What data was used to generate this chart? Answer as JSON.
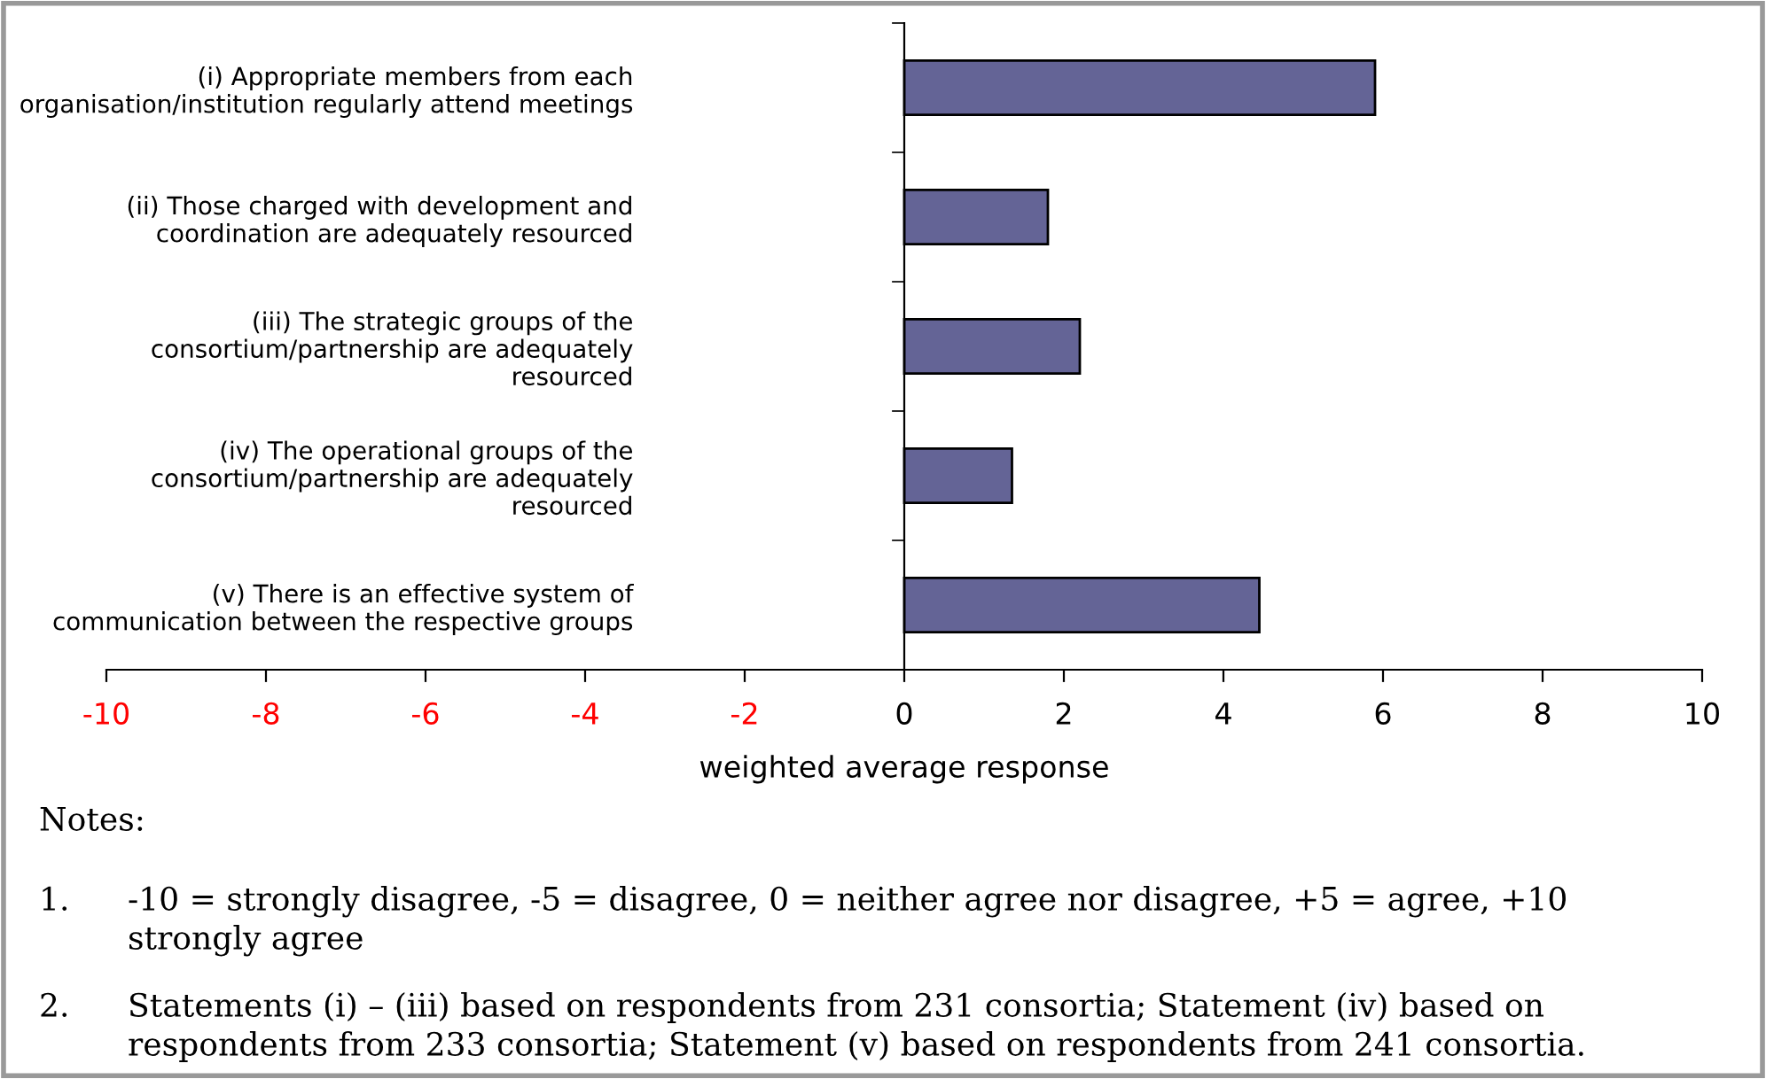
{
  "chart_data": {
    "type": "bar",
    "orientation": "horizontal",
    "xlabel": "weighted average response",
    "categories": [
      "(i) Appropriate members from each\norganisation/institution regularly attend meetings",
      "(ii) Those charged with development and\ncoordination are adequately resourced",
      "(iii) The strategic groups of the\nconsortium/partnership are adequately\nresourced",
      "(iv) The operational groups of the\nconsortium/partnership are adequately\nresourced",
      "(v) There is an effective system of\ncommunication between the respective groups"
    ],
    "values": [
      5.9,
      1.8,
      2.2,
      1.35,
      4.45
    ],
    "color": "#646496",
    "xlim": [
      -10,
      10
    ],
    "xticks": [
      -10,
      -8,
      -6,
      -4,
      -2,
      0,
      2,
      4,
      6,
      8,
      10
    ],
    "legend": false,
    "annotations": [
      "Notes:",
      "1.\t-10 = strongly disagree, -5 = disagree, 0 = neither agree nor disagree, +5 = agree, +10\n\tstrongly agree",
      "2.\tStatements (i) – (iii) based on respondents from 231 consortia; Statement (iv) based on\n\trespondents from 233 consortia; Statement (v) based on respondents from 241 consortia."
    ]
  }
}
